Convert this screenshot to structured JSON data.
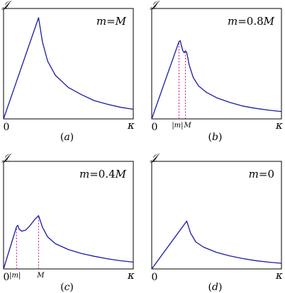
{
  "chart_data": [
    {
      "type": "line",
      "panel_label": "(a)",
      "ylabel": "𝒥",
      "xlabel": "κ",
      "x_origin_label": "0",
      "annotation": {
        "var": "m",
        "eq": "=",
        "value": "M"
      },
      "xlim": [
        0,
        1
      ],
      "ylim": [
        0,
        1
      ],
      "series": [
        {
          "x": [
            0.0,
            0.27,
            0.3,
            0.34,
            0.4,
            0.5,
            0.6,
            0.7,
            0.8,
            0.9,
            1.0
          ],
          "y": [
            0.0,
            1.0,
            0.76,
            0.57,
            0.43,
            0.31,
            0.24,
            0.18,
            0.145,
            0.115,
            0.095
          ]
        }
      ],
      "markers": []
    },
    {
      "type": "line",
      "panel_label": "(b)",
      "ylabel": "𝒥",
      "xlabel": "κ",
      "x_origin_label": "0",
      "annotation": {
        "var": "m",
        "eq": "=",
        "value": "0.8M"
      },
      "xlim": [
        0,
        1
      ],
      "ylim": [
        0,
        1
      ],
      "series": [
        {
          "x": [
            0.0,
            0.21,
            0.22,
            0.23,
            0.24,
            0.25,
            0.26,
            0.27,
            0.29,
            0.32,
            0.36,
            0.42,
            0.5,
            0.6,
            0.7,
            0.8,
            0.9,
            1.0
          ],
          "y": [
            0.0,
            0.84,
            0.85,
            0.79,
            0.74,
            0.72,
            0.74,
            0.72,
            0.58,
            0.45,
            0.36,
            0.29,
            0.23,
            0.18,
            0.14,
            0.115,
            0.095,
            0.08
          ]
        }
      ],
      "markers": [
        {
          "x": 0.21,
          "label": "|m|"
        },
        {
          "x": 0.26,
          "label": "M"
        }
      ]
    },
    {
      "type": "line",
      "panel_label": "(c)",
      "ylabel": "𝒥",
      "xlabel": "κ",
      "x_origin_label": "0",
      "annotation": {
        "var": "m",
        "eq": "=",
        "value": "0.4M"
      },
      "xlim": [
        0,
        1
      ],
      "ylim": [
        0,
        1
      ],
      "series": [
        {
          "x": [
            0.0,
            0.1,
            0.11,
            0.12,
            0.14,
            0.17,
            0.2,
            0.24,
            0.27,
            0.3,
            0.34,
            0.4,
            0.5,
            0.6,
            0.7,
            0.8,
            0.9,
            1.0
          ],
          "y": [
            0.0,
            0.435,
            0.45,
            0.41,
            0.39,
            0.4,
            0.44,
            0.51,
            0.55,
            0.43,
            0.33,
            0.26,
            0.2,
            0.16,
            0.13,
            0.105,
            0.085,
            0.07
          ]
        }
      ],
      "markers": [
        {
          "x": 0.1,
          "label": "|m|"
        },
        {
          "x": 0.27,
          "label": "M"
        }
      ]
    },
    {
      "type": "line",
      "panel_label": "(d)",
      "ylabel": "𝒥",
      "xlabel": "κ",
      "x_origin_label": "0",
      "annotation": {
        "var": "m",
        "eq": "=",
        "value": "0"
      },
      "xlim": [
        0,
        1
      ],
      "ylim": [
        0,
        1
      ],
      "series": [
        {
          "x": [
            0.0,
            0.27,
            0.3,
            0.34,
            0.4,
            0.5,
            0.6,
            0.7,
            0.8,
            0.9,
            1.0
          ],
          "y": [
            0.0,
            0.55,
            0.41,
            0.31,
            0.25,
            0.19,
            0.15,
            0.12,
            0.095,
            0.078,
            0.065
          ]
        }
      ],
      "markers": []
    }
  ]
}
